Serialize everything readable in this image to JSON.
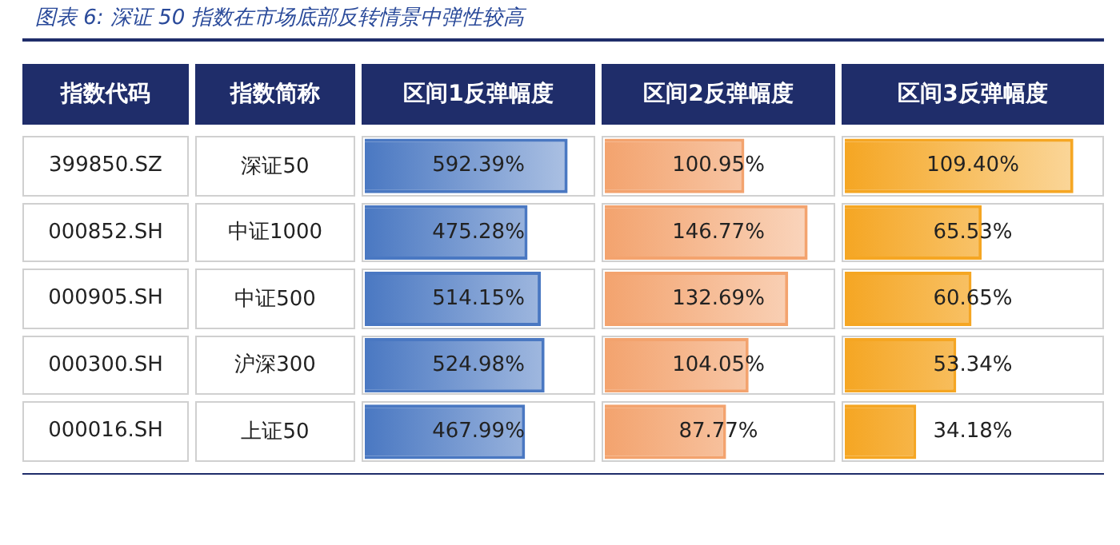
{
  "chart_data": [
    {
      "type": "other",
      "title": "图表 6: 深证 50 指数在市场底部反转情景中弹性较高",
      "categories": [
        "指数代码",
        "指数简称"
      ],
      "annotations": [
        "399850.SZ",
        "深证50",
        "000852.SH",
        "中证1000",
        "000905.SH",
        "中证500",
        "000300.SH",
        "沪深300",
        "000016.SH",
        "上证50"
      ]
    },
    {
      "type": "bar",
      "orientation": "horizontal",
      "title": "区间1反弹幅度",
      "categories": [
        null,
        null,
        null,
        null,
        null
      ],
      "values": [
        592.39,
        475.28,
        514.15,
        524.98,
        467.99
      ],
      "value_labels": [
        "592.39%",
        "475.28%",
        "514.15%",
        "524.98%",
        "467.99%"
      ],
      "color": "#4a78c2"
    },
    {
      "type": "bar",
      "orientation": "horizontal",
      "title": "区间2反弹幅度",
      "categories": [
        null,
        null,
        null,
        null,
        null
      ],
      "values": [
        100.95,
        146.77,
        132.69,
        104.05,
        87.77
      ],
      "value_labels": [
        "100.95%",
        "146.77%",
        "132.69%",
        "104.05%",
        "87.77%"
      ],
      "color": "#f3a36e"
    },
    {
      "type": "bar",
      "orientation": "horizontal",
      "title": "区间3反弹幅度",
      "categories": [
        null,
        null,
        null,
        null,
        null
      ],
      "values": [
        109.4,
        65.53,
        60.65,
        53.34,
        34.18
      ],
      "value_labels": [
        "109.40%",
        "65.53%",
        "60.65%",
        "53.34%",
        "34.18%"
      ],
      "color": "#f5a623"
    }
  ]
}
